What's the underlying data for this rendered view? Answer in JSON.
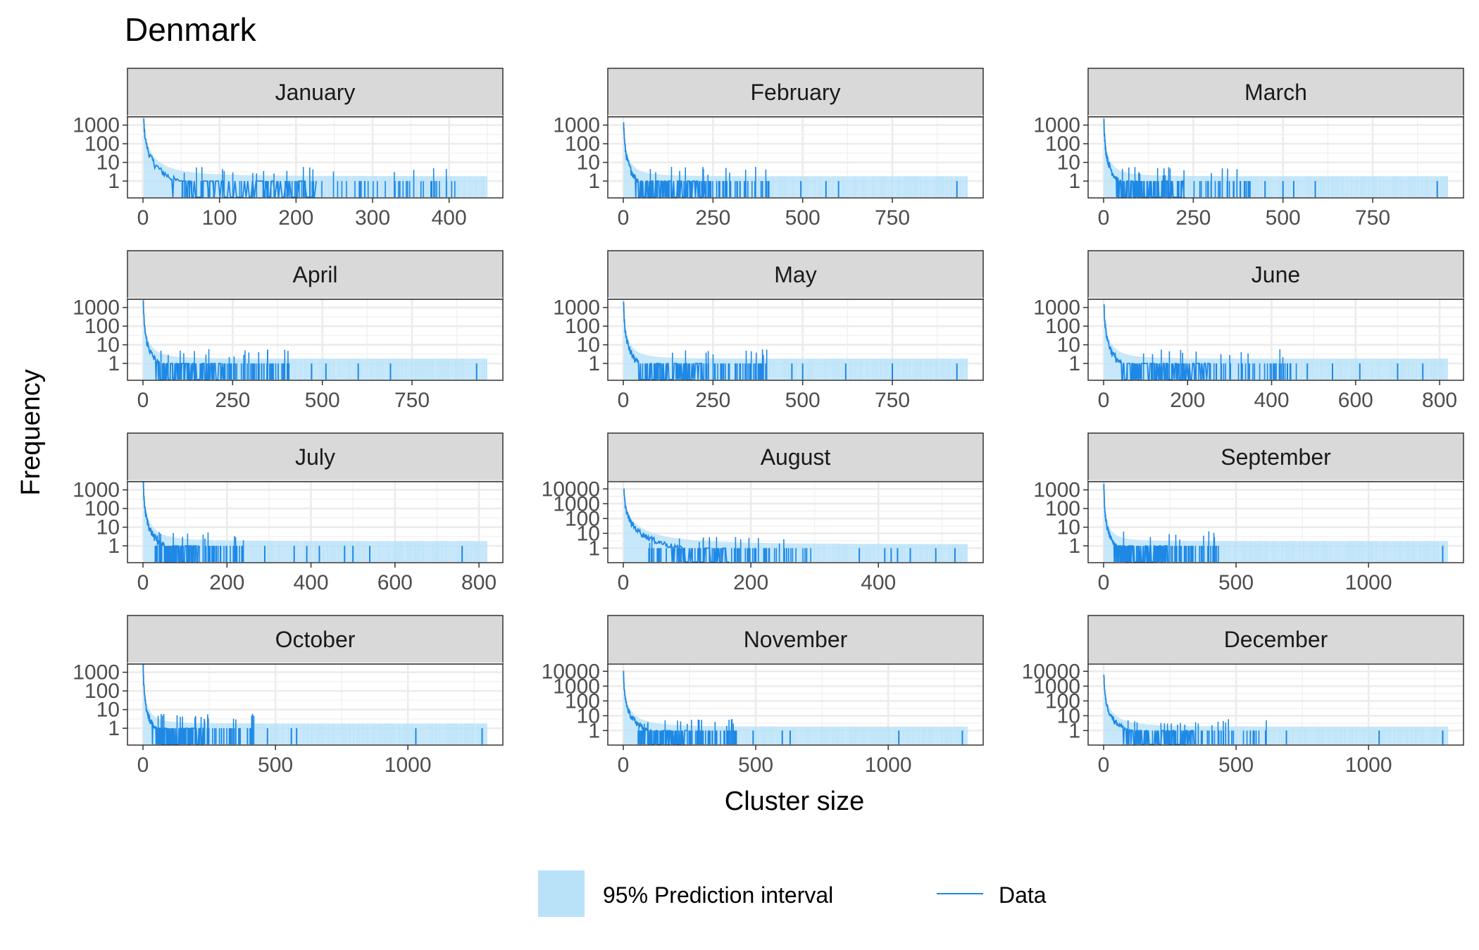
{
  "title": "Denmark",
  "chart_data": {
    "type": "line",
    "title": "Denmark",
    "xlabel": "Cluster size",
    "ylabel": "Frequency",
    "y_scale": "log10",
    "grid": true,
    "legend_position": "bottom",
    "legend": [
      {
        "name": "95% Prediction interval",
        "kind": "ribbon",
        "color": "#b9e2f9"
      },
      {
        "name": "Data",
        "kind": "line",
        "color": "#1e88e5"
      }
    ],
    "colors": {
      "data": "#1e88e5",
      "interval": "#b9e2f9",
      "strip": "#d9d9d9"
    },
    "panels": [
      {
        "month": "January",
        "xlim": [
          0,
          450
        ],
        "xticks": [
          0,
          100,
          200,
          300,
          400
        ],
        "xtick_labels": [
          "0",
          "100",
          "200",
          "300",
          "400"
        ],
        "yticks": [
          1,
          10,
          100,
          1000
        ],
        "ytick_labels": [
          "1",
          "10",
          "100",
          "1000"
        ],
        "max_count": 1900,
        "max_cluster": 410,
        "outliers": [],
        "pi_tail": 450
      },
      {
        "month": "February",
        "xlim": [
          0,
          960
        ],
        "xticks": [
          0,
          250,
          500,
          750
        ],
        "xtick_labels": [
          "0",
          "250",
          "500",
          "750"
        ],
        "yticks": [
          1,
          10,
          100,
          1000
        ],
        "ytick_labels": [
          "1",
          "10",
          "100",
          "1000"
        ],
        "max_count": 1700,
        "max_cluster": 420,
        "outliers": [
          495,
          565,
          600,
          930
        ],
        "pi_tail": 960
      },
      {
        "month": "March",
        "xlim": [
          0,
          960
        ],
        "xticks": [
          0,
          250,
          500,
          750
        ],
        "xtick_labels": [
          "0",
          "250",
          "500",
          "750"
        ],
        "yticks": [
          1,
          10,
          100,
          1000
        ],
        "ytick_labels": [
          "1",
          "10",
          "100",
          "1000"
        ],
        "max_count": 1700,
        "max_cluster": 410,
        "outliers": [
          450,
          500,
          530,
          590,
          930
        ],
        "pi_tail": 960
      },
      {
        "month": "April",
        "xlim": [
          0,
          960
        ],
        "xticks": [
          0,
          250,
          500,
          750
        ],
        "xtick_labels": [
          "0",
          "250",
          "500",
          "750"
        ],
        "yticks": [
          1,
          10,
          100,
          1000
        ],
        "ytick_labels": [
          "1",
          "10",
          "100",
          "1000"
        ],
        "max_count": 1800,
        "max_cluster": 410,
        "outliers": [
          470,
          510,
          600,
          690,
          930
        ],
        "pi_tail": 960
      },
      {
        "month": "May",
        "xlim": [
          0,
          960
        ],
        "xticks": [
          0,
          250,
          500,
          750
        ],
        "xtick_labels": [
          "0",
          "250",
          "500",
          "750"
        ],
        "yticks": [
          1,
          10,
          100,
          1000
        ],
        "ytick_labels": [
          "1",
          "10",
          "100",
          "1000"
        ],
        "max_count": 1700,
        "max_cluster": 400,
        "outliers": [
          470,
          500,
          620,
          750,
          930
        ],
        "pi_tail": 960
      },
      {
        "month": "June",
        "xlim": [
          0,
          820
        ],
        "xticks": [
          0,
          200,
          400,
          600,
          800
        ],
        "xtick_labels": [
          "0",
          "200",
          "400",
          "600",
          "800"
        ],
        "yticks": [
          1,
          10,
          100,
          1000
        ],
        "ytick_labels": [
          "1",
          "10",
          "100",
          "1000"
        ],
        "max_count": 1600,
        "max_cluster": 460,
        "outliers": [
          485,
          545,
          610,
          700,
          760
        ],
        "pi_tail": 820
      },
      {
        "month": "July",
        "xlim": [
          0,
          820
        ],
        "xticks": [
          0,
          200,
          400,
          600,
          800
        ],
        "xtick_labels": [
          "0",
          "200",
          "400",
          "600",
          "800"
        ],
        "yticks": [
          1,
          10,
          100,
          1000
        ],
        "ytick_labels": [
          "1",
          "10",
          "100",
          "1000"
        ],
        "max_count": 2200,
        "max_cluster": 240,
        "outliers": [
          290,
          360,
          390,
          420,
          480,
          500,
          540,
          760
        ],
        "pi_tail": 820
      },
      {
        "month": "August",
        "xlim": [
          0,
          540
        ],
        "xticks": [
          0,
          200,
          400
        ],
        "xtick_labels": [
          "0",
          "200",
          "400"
        ],
        "yticks": [
          1,
          10,
          100,
          1000,
          10000
        ],
        "ytick_labels": [
          "1",
          "10",
          "100",
          "1000",
          "10000"
        ],
        "max_count": 8000,
        "max_cluster": 300,
        "outliers": [
          370,
          410,
          420,
          430,
          450,
          490,
          520
        ],
        "pi_tail": 540
      },
      {
        "month": "September",
        "xlim": [
          0,
          1300
        ],
        "xticks": [
          0,
          500,
          1000
        ],
        "xtick_labels": [
          "0",
          "500",
          "1000"
        ],
        "yticks": [
          1,
          10,
          100,
          1000
        ],
        "ytick_labels": [
          "1",
          "10",
          "100",
          "1000"
        ],
        "max_count": 1900,
        "max_cluster": 440,
        "outliers": [
          1280
        ],
        "pi_tail": 1300
      },
      {
        "month": "October",
        "xlim": [
          0,
          1300
        ],
        "xticks": [
          0,
          500,
          1000
        ],
        "xtick_labels": [
          "0",
          "500",
          "1000"
        ],
        "yticks": [
          1,
          10,
          100,
          1000
        ],
        "ytick_labels": [
          "1",
          "10",
          "100",
          "1000"
        ],
        "max_count": 2000,
        "max_cluster": 420,
        "outliers": [
          470,
          560,
          580,
          1030,
          1280
        ],
        "pi_tail": 1300
      },
      {
        "month": "November",
        "xlim": [
          0,
          1300
        ],
        "xticks": [
          0,
          500,
          1000
        ],
        "xtick_labels": [
          "0",
          "500",
          "1000"
        ],
        "yticks": [
          1,
          10,
          100,
          1000,
          10000
        ],
        "ytick_labels": [
          "1",
          "10",
          "100",
          "1000",
          "10000"
        ],
        "max_count": 8000,
        "max_cluster": 440,
        "outliers": [
          490,
          600,
          630,
          1040,
          1280
        ],
        "pi_tail": 1300
      },
      {
        "month": "December",
        "xlim": [
          0,
          1300
        ],
        "xticks": [
          0,
          500,
          1000
        ],
        "xtick_labels": [
          "0",
          "500",
          "1000"
        ],
        "yticks": [
          1,
          10,
          100,
          1000,
          10000
        ],
        "ytick_labels": [
          "1",
          "10",
          "100",
          "1000",
          "10000"
        ],
        "max_count": 8000,
        "max_cluster": 620,
        "outliers": [
          690,
          1040,
          1280
        ],
        "pi_tail": 1300
      }
    ]
  }
}
